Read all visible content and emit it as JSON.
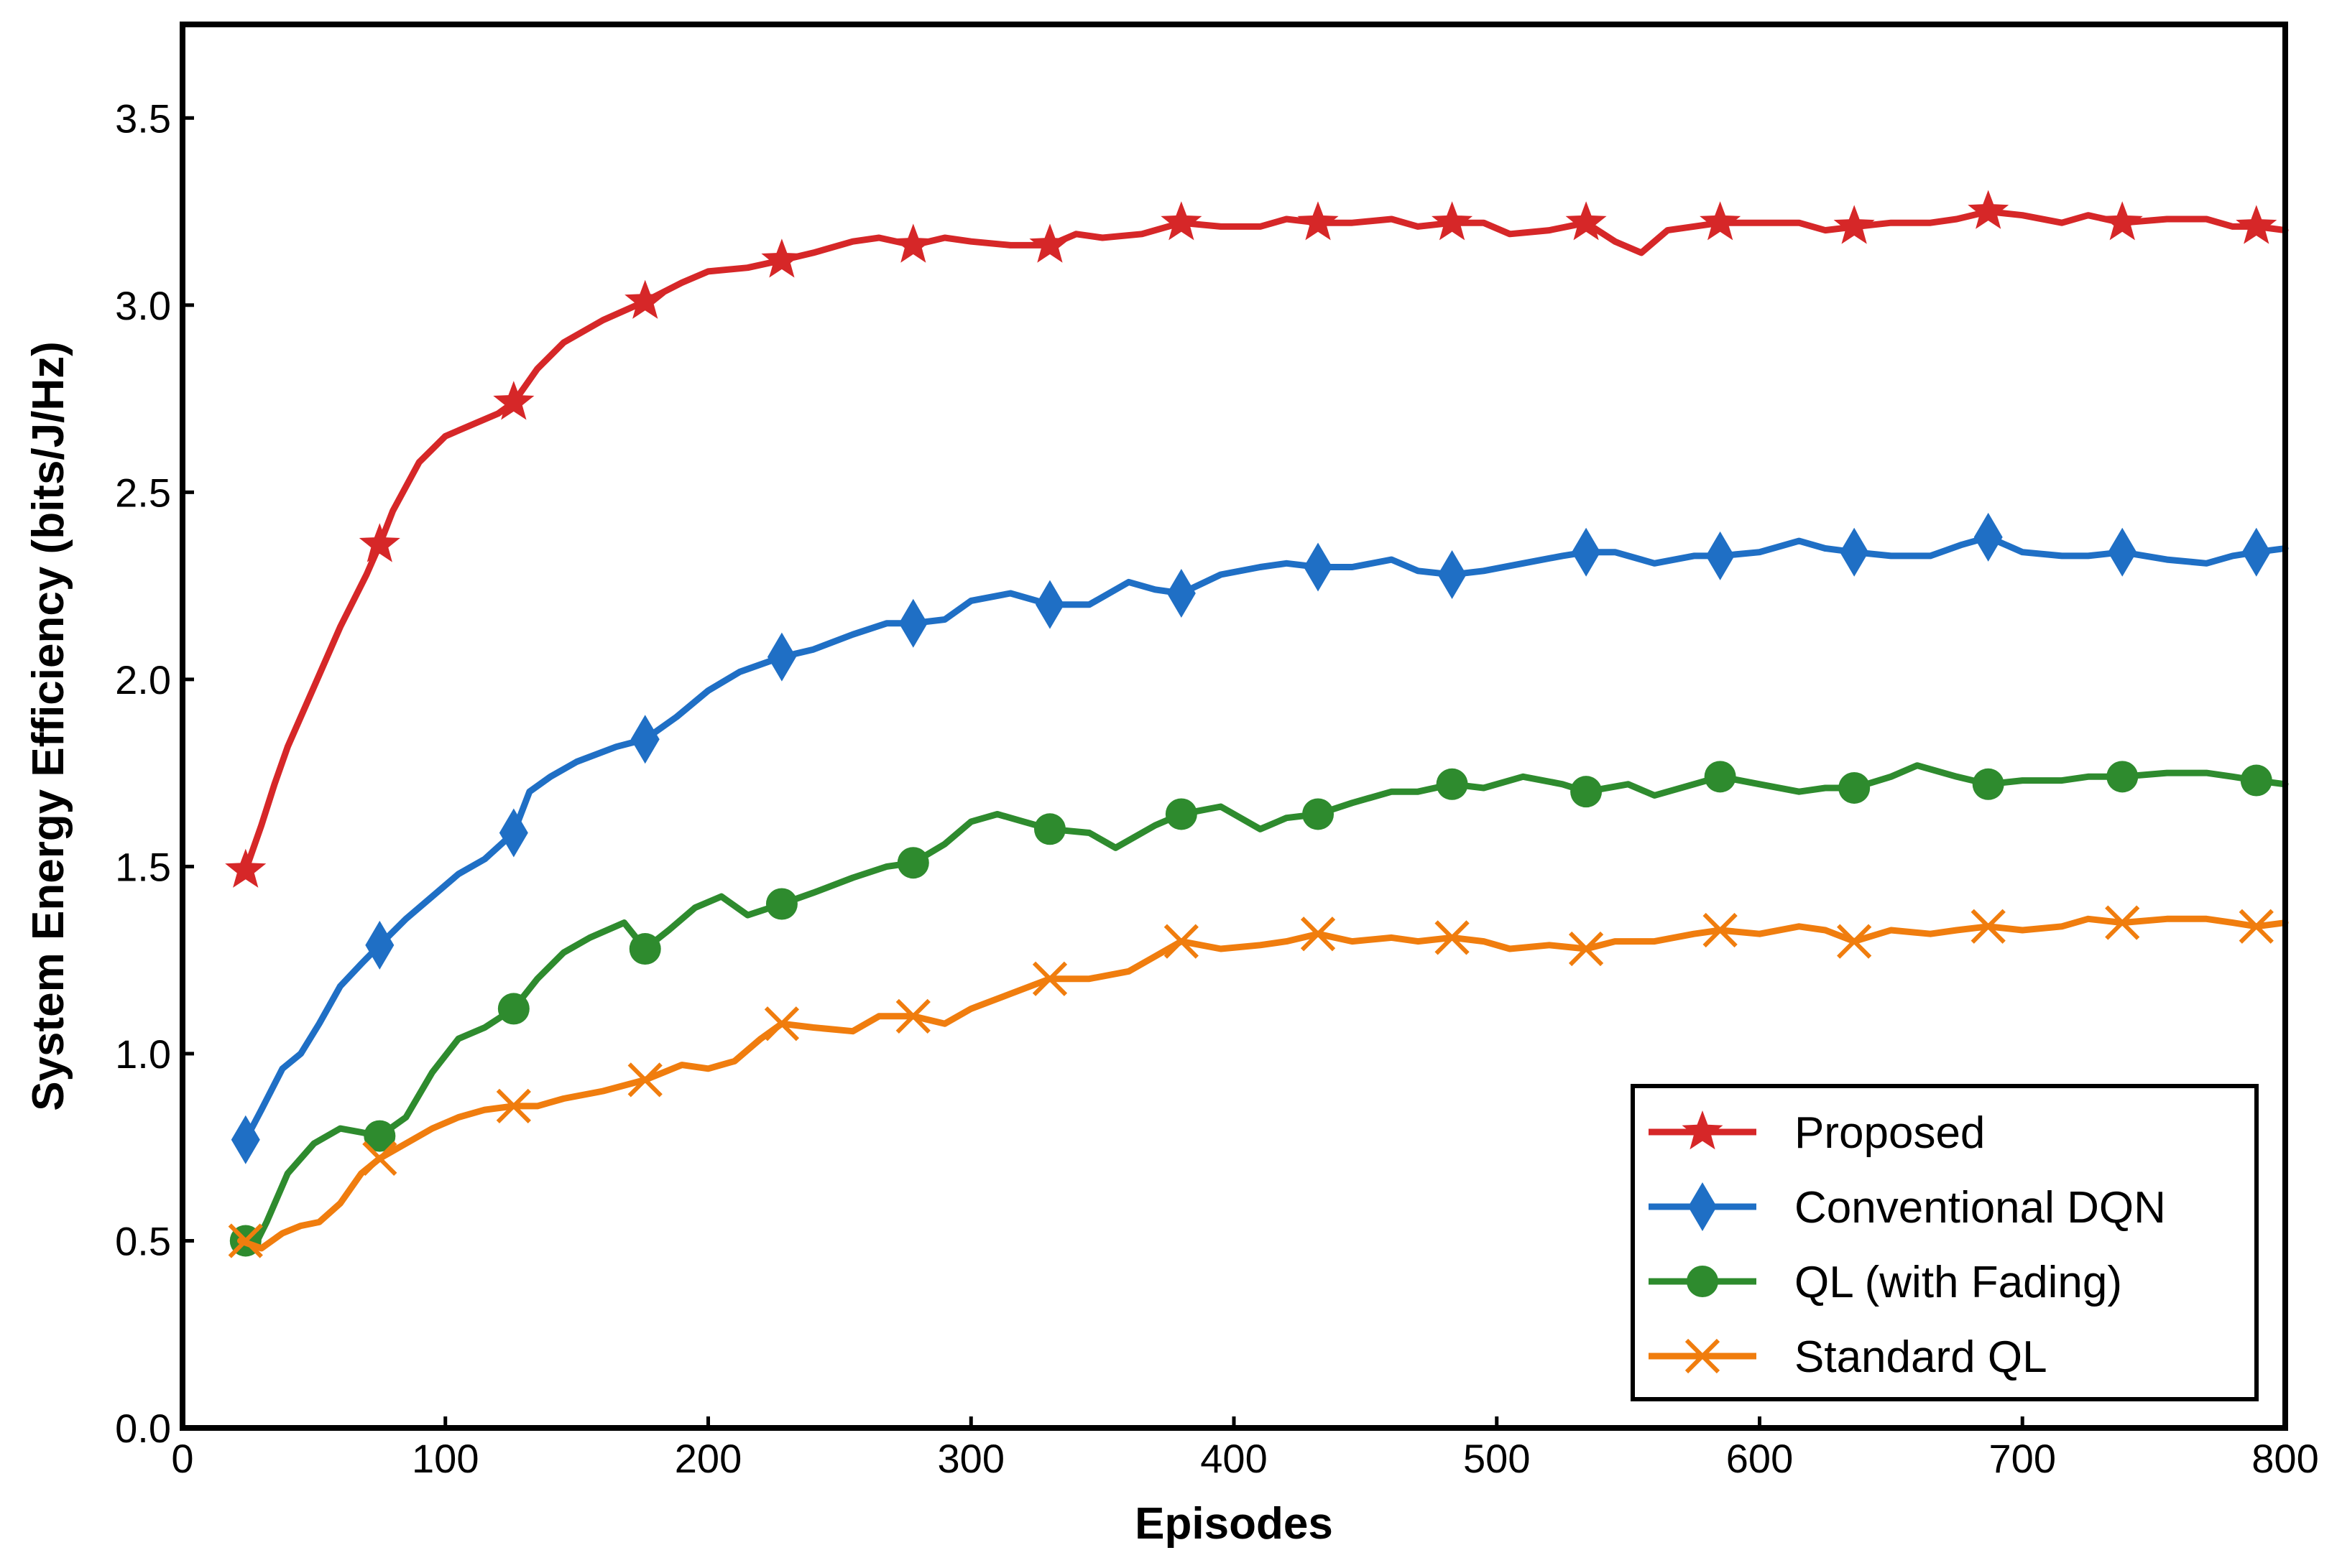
{
  "chart_data": {
    "type": "line",
    "title": "",
    "xlabel": "Episodes",
    "ylabel": "System Energy Efficiency (bits/J/Hz)",
    "xlim": [
      0,
      800
    ],
    "ylim": [
      0.0,
      3.75
    ],
    "xticks": [
      0,
      100,
      200,
      300,
      400,
      500,
      600,
      700,
      800
    ],
    "xtick_labels": [
      "0",
      "100",
      "200",
      "300",
      "400",
      "500",
      "600",
      "700",
      "800"
    ],
    "yticks": [
      0.0,
      0.5,
      1.0,
      1.5,
      2.0,
      2.5,
      3.0,
      3.5
    ],
    "ytick_labels": [
      "0.0",
      "0.5",
      "1.0",
      "1.5",
      "2.0",
      "2.5",
      "3.0",
      "3.5"
    ],
    "grid": false,
    "legend_position": "bottom-right",
    "series": [
      {
        "name": "Proposed",
        "color": "#d62728",
        "marker": "star",
        "x": [
          24,
          30,
          35,
          40,
          50,
          60,
          70,
          75,
          80,
          90,
          100,
          110,
          120,
          126,
          135,
          145,
          160,
          176,
          190,
          200,
          215,
          228,
          240,
          255,
          265,
          278,
          290,
          300,
          315,
          330,
          340,
          350,
          365,
          380,
          395,
          410,
          420,
          432,
          445,
          460,
          470,
          483,
          495,
          505,
          520,
          534,
          545,
          555,
          565,
          585,
          600,
          615,
          625,
          637,
          650,
          665,
          675,
          687,
          700,
          715,
          725,
          738,
          755,
          770,
          780,
          789,
          800
        ],
        "y": [
          1.49,
          1.61,
          1.72,
          1.82,
          1.98,
          2.14,
          2.28,
          2.36,
          2.45,
          2.58,
          2.65,
          2.68,
          2.71,
          2.74,
          2.83,
          2.9,
          2.96,
          3.01,
          3.06,
          3.09,
          3.1,
          3.12,
          3.14,
          3.17,
          3.18,
          3.16,
          3.18,
          3.17,
          3.16,
          3.16,
          3.19,
          3.18,
          3.19,
          3.22,
          3.21,
          3.21,
          3.23,
          3.22,
          3.22,
          3.23,
          3.21,
          3.22,
          3.22,
          3.19,
          3.2,
          3.22,
          3.17,
          3.14,
          3.2,
          3.22,
          3.22,
          3.22,
          3.2,
          3.21,
          3.22,
          3.22,
          3.23,
          3.25,
          3.24,
          3.22,
          3.24,
          3.22,
          3.23,
          3.23,
          3.21,
          3.21,
          3.2
        ],
        "markers_x": [
          24,
          75,
          126,
          176,
          228,
          278,
          330,
          380,
          432,
          483,
          534,
          585,
          636,
          687,
          738,
          789
        ],
        "markers_y": [
          1.49,
          2.36,
          2.74,
          3.01,
          3.12,
          3.16,
          3.16,
          3.22,
          3.22,
          3.22,
          3.22,
          3.22,
          3.21,
          3.25,
          3.22,
          3.21
        ]
      },
      {
        "name": "Conventional DQN",
        "color": "#1f6fc5",
        "marker": "diamond",
        "x": [
          24,
          30,
          38,
          45,
          52,
          60,
          68,
          75,
          85,
          95,
          105,
          115,
          126,
          132,
          140,
          150,
          165,
          176,
          188,
          200,
          212,
          228,
          240,
          255,
          268,
          278,
          290,
          300,
          315,
          330,
          345,
          360,
          370,
          380,
          395,
          410,
          420,
          432,
          445,
          460,
          470,
          483,
          495,
          510,
          525,
          534,
          545,
          560,
          575,
          585,
          600,
          615,
          625,
          636,
          650,
          665,
          677,
          687,
          700,
          715,
          725,
          738,
          755,
          770,
          780,
          789,
          800
        ],
        "y": [
          0.77,
          0.85,
          0.96,
          1.0,
          1.08,
          1.18,
          1.24,
          1.29,
          1.36,
          1.42,
          1.48,
          1.52,
          1.59,
          1.7,
          1.74,
          1.78,
          1.82,
          1.84,
          1.9,
          1.97,
          2.02,
          2.06,
          2.08,
          2.12,
          2.15,
          2.15,
          2.16,
          2.21,
          2.23,
          2.2,
          2.2,
          2.26,
          2.24,
          2.23,
          2.28,
          2.3,
          2.31,
          2.3,
          2.3,
          2.32,
          2.29,
          2.28,
          2.29,
          2.31,
          2.33,
          2.34,
          2.34,
          2.31,
          2.33,
          2.33,
          2.34,
          2.37,
          2.35,
          2.34,
          2.33,
          2.33,
          2.36,
          2.38,
          2.34,
          2.33,
          2.33,
          2.34,
          2.32,
          2.31,
          2.33,
          2.34,
          2.35
        ],
        "markers_x": [
          24,
          75,
          126,
          176,
          228,
          278,
          330,
          380,
          432,
          483,
          534,
          585,
          636,
          687,
          738,
          789
        ],
        "markers_y": [
          0.77,
          1.29,
          1.59,
          1.84,
          2.06,
          2.15,
          2.2,
          2.23,
          2.3,
          2.28,
          2.34,
          2.33,
          2.34,
          2.38,
          2.34,
          2.34
        ]
      },
      {
        "name": "QL (with Fading)",
        "color": "#2e8b2e",
        "marker": "circle",
        "x": [
          22,
          27,
          32,
          40,
          50,
          60,
          68,
          75,
          85,
          95,
          105,
          115,
          126,
          135,
          145,
          155,
          168,
          176,
          185,
          195,
          205,
          215,
          228,
          240,
          255,
          268,
          278,
          290,
          300,
          310,
          320,
          330,
          345,
          355,
          370,
          380,
          395,
          410,
          420,
          432,
          445,
          460,
          470,
          483,
          495,
          510,
          525,
          534,
          550,
          560,
          575,
          585,
          600,
          615,
          625,
          636,
          650,
          660,
          675,
          687,
          700,
          715,
          725,
          738,
          755,
          770,
          780,
          789,
          800
        ],
        "y": [
          0.5,
          0.48,
          0.55,
          0.68,
          0.76,
          0.8,
          0.79,
          0.78,
          0.83,
          0.95,
          1.04,
          1.07,
          1.12,
          1.2,
          1.27,
          1.31,
          1.35,
          1.28,
          1.33,
          1.39,
          1.42,
          1.37,
          1.4,
          1.43,
          1.47,
          1.5,
          1.51,
          1.56,
          1.62,
          1.64,
          1.62,
          1.6,
          1.59,
          1.55,
          1.61,
          1.64,
          1.66,
          1.6,
          1.63,
          1.64,
          1.67,
          1.7,
          1.7,
          1.72,
          1.71,
          1.74,
          1.72,
          1.7,
          1.72,
          1.69,
          1.72,
          1.74,
          1.72,
          1.7,
          1.71,
          1.71,
          1.74,
          1.77,
          1.74,
          1.72,
          1.73,
          1.73,
          1.74,
          1.74,
          1.75,
          1.75,
          1.74,
          1.73,
          1.72
        ],
        "markers_x": [
          24,
          75,
          126,
          176,
          228,
          278,
          330,
          380,
          432,
          483,
          534,
          585,
          636,
          687,
          738,
          789
        ],
        "markers_y": [
          0.5,
          0.78,
          1.12,
          1.28,
          1.4,
          1.51,
          1.6,
          1.64,
          1.64,
          1.72,
          1.7,
          1.74,
          1.71,
          1.72,
          1.74,
          1.73
        ]
      },
      {
        "name": "Standard QL",
        "color": "#f07d0e",
        "marker": "x",
        "x": [
          22,
          30,
          38,
          45,
          52,
          60,
          68,
          75,
          85,
          95,
          105,
          115,
          126,
          135,
          145,
          160,
          176,
          190,
          200,
          210,
          220,
          228,
          240,
          255,
          265,
          278,
          290,
          300,
          315,
          330,
          345,
          360,
          370,
          380,
          395,
          410,
          420,
          432,
          445,
          460,
          470,
          483,
          495,
          505,
          520,
          534,
          545,
          560,
          575,
          585,
          600,
          615,
          625,
          636,
          650,
          665,
          675,
          687,
          700,
          715,
          725,
          738,
          755,
          770,
          780,
          789,
          800
        ],
        "y": [
          0.5,
          0.48,
          0.52,
          0.54,
          0.55,
          0.6,
          0.68,
          0.72,
          0.76,
          0.8,
          0.83,
          0.85,
          0.86,
          0.86,
          0.88,
          0.9,
          0.93,
          0.97,
          0.96,
          0.98,
          1.04,
          1.08,
          1.07,
          1.06,
          1.1,
          1.1,
          1.08,
          1.12,
          1.16,
          1.2,
          1.2,
          1.22,
          1.26,
          1.3,
          1.28,
          1.29,
          1.3,
          1.32,
          1.3,
          1.31,
          1.3,
          1.31,
          1.3,
          1.28,
          1.29,
          1.28,
          1.3,
          1.3,
          1.32,
          1.33,
          1.32,
          1.34,
          1.33,
          1.3,
          1.33,
          1.32,
          1.33,
          1.34,
          1.33,
          1.34,
          1.36,
          1.35,
          1.36,
          1.36,
          1.35,
          1.34,
          1.35
        ],
        "markers_x": [
          24,
          75,
          126,
          176,
          228,
          278,
          330,
          380,
          432,
          483,
          534,
          585,
          636,
          687,
          738,
          789
        ],
        "markers_y": [
          0.5,
          0.72,
          0.86,
          0.93,
          1.08,
          1.1,
          1.2,
          1.3,
          1.32,
          1.31,
          1.28,
          1.33,
          1.3,
          1.34,
          1.35,
          1.34
        ]
      }
    ]
  }
}
